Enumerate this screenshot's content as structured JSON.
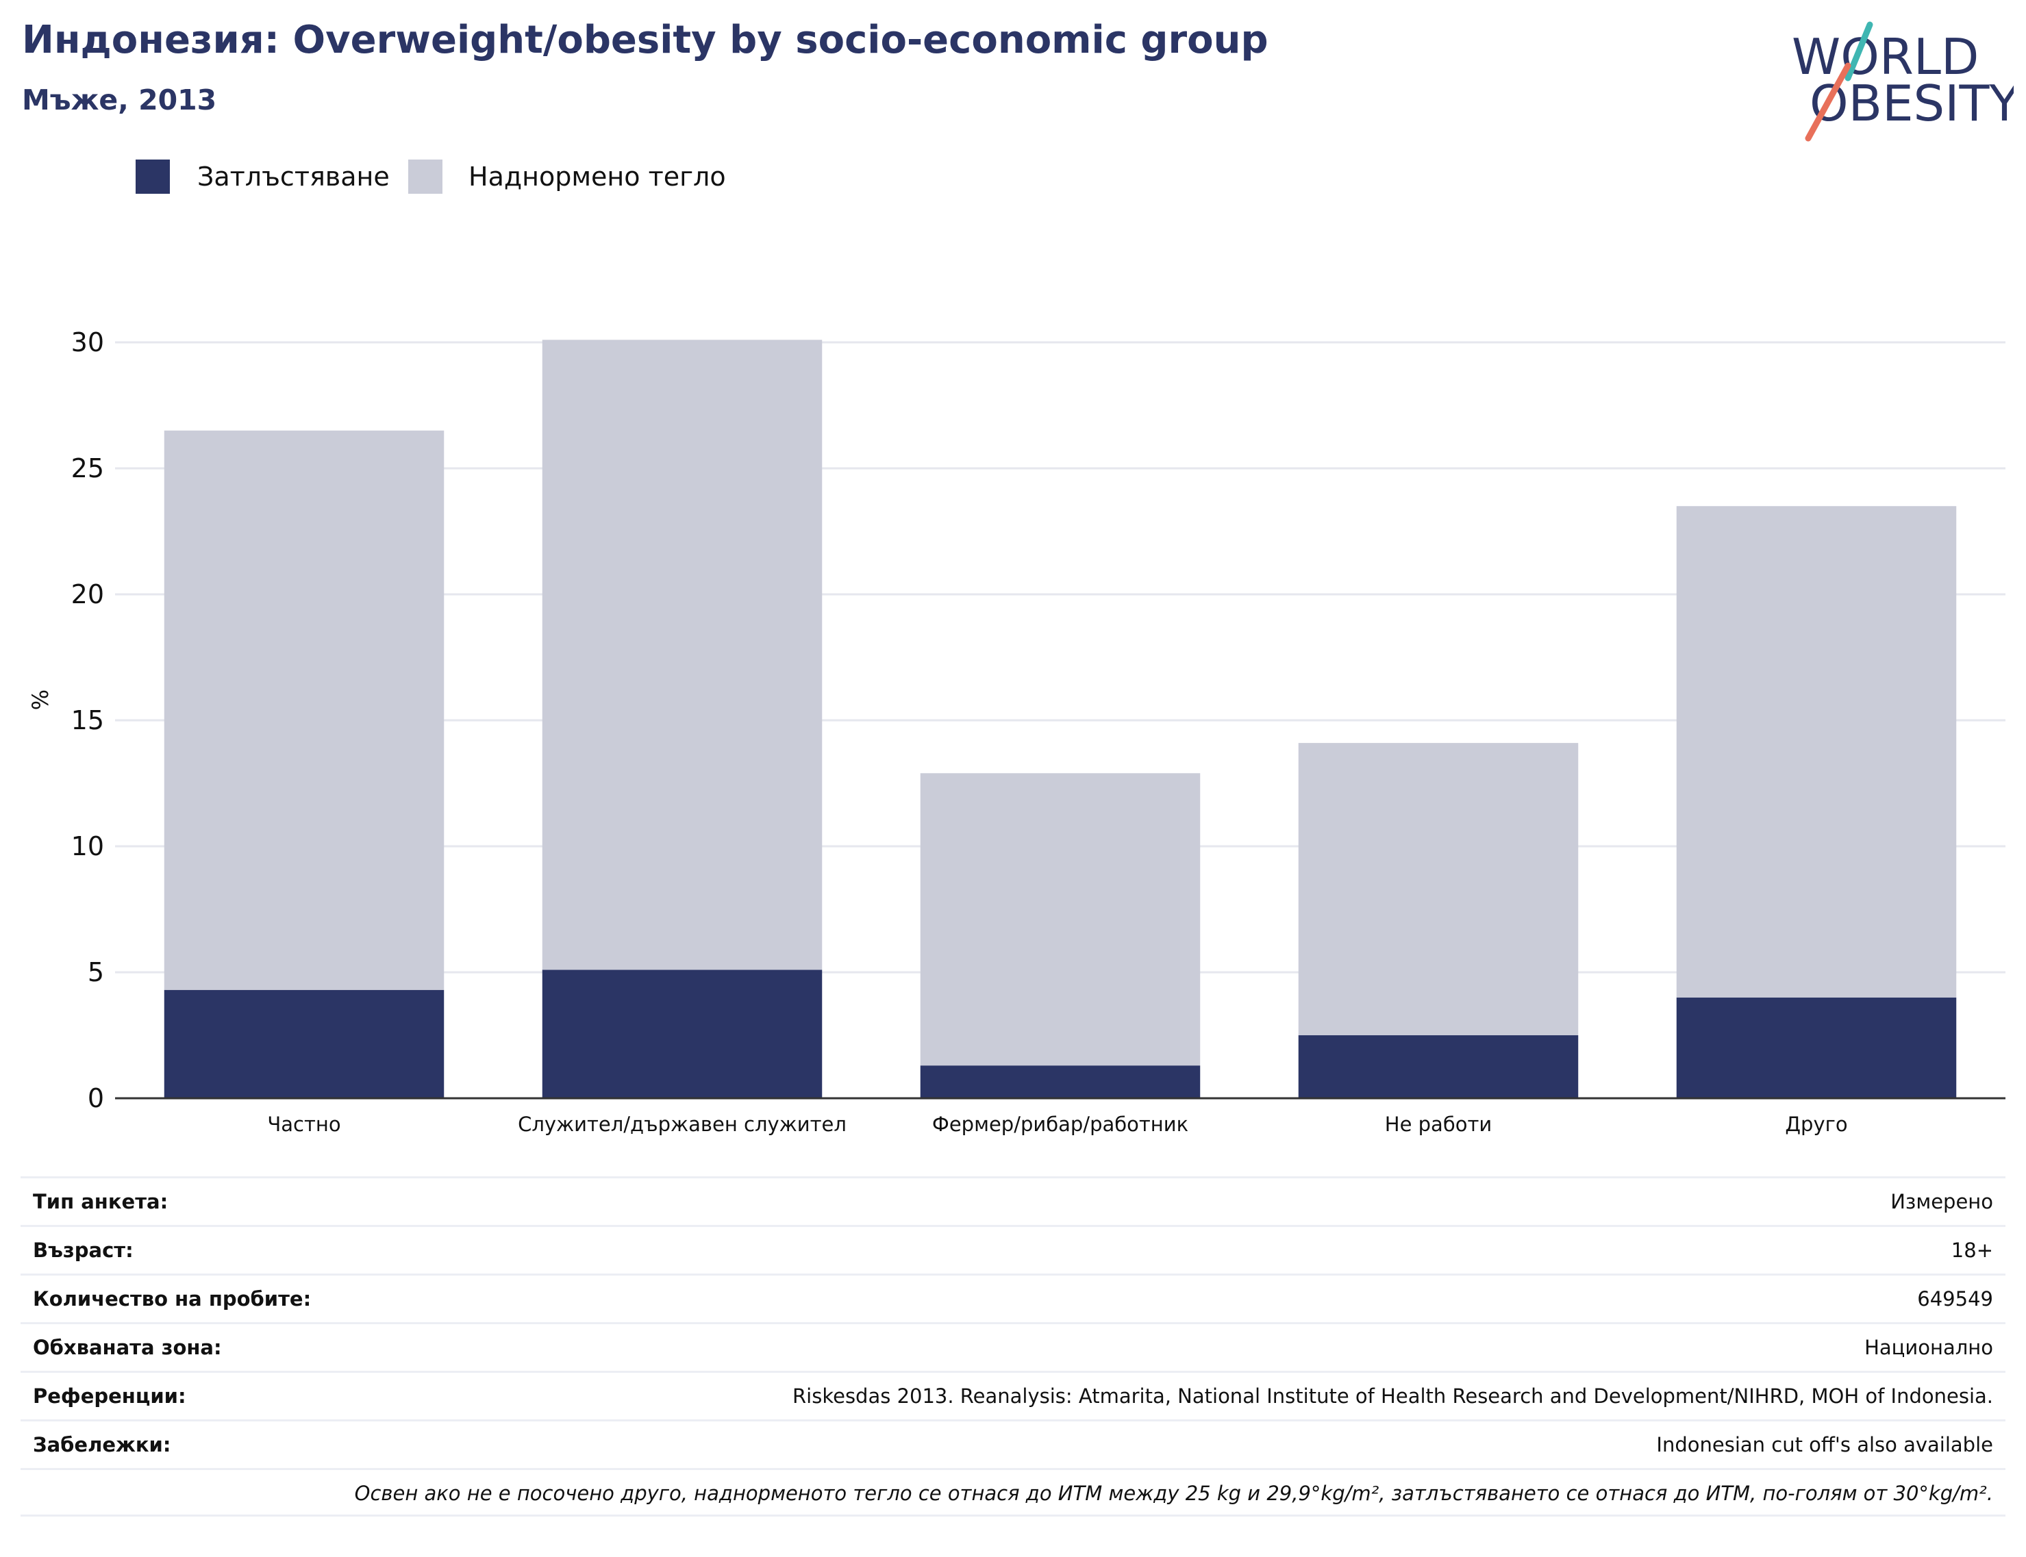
{
  "header": {
    "title": "Индонезия: Overweight/obesity by socio-economic group",
    "subtitle": "Мъже, 2013"
  },
  "logo": {
    "line1": "WORLD",
    "line2": "OBESITY"
  },
  "colors": {
    "obesity": "#2b3565",
    "overweight": "#caccd8",
    "grid": "#e6e7ee",
    "axis": "#333333",
    "logo_navy": "#2b3565",
    "logo_teal": "#3fb6b2",
    "logo_coral": "#e8705a"
  },
  "chart_data": {
    "type": "bar",
    "stacked": true,
    "categories": [
      "Частно",
      "Служител/държавен служител",
      "Фермер/рибар/работник",
      "Не работи",
      "Друго"
    ],
    "series": [
      {
        "name": "Затлъстяване",
        "values": [
          4.3,
          5.1,
          1.3,
          2.5,
          4.0
        ]
      },
      {
        "name": "Наднормено тегло",
        "values": [
          22.2,
          25.0,
          11.6,
          11.6,
          19.5
        ]
      }
    ],
    "ylabel": "%",
    "ylim": [
      0,
      30
    ],
    "yticks": [
      0,
      5,
      10,
      15,
      20,
      25,
      30
    ],
    "grid": true,
    "legend_position": "top-left"
  },
  "info": {
    "rows": [
      {
        "label": "Тип анкета:",
        "value": "Измерено"
      },
      {
        "label": "Възраст:",
        "value": "18+"
      },
      {
        "label": "Количество на пробите:",
        "value": "649549"
      },
      {
        "label": "Обхваната зона:",
        "value": "Национално"
      },
      {
        "label": "Референции:",
        "value": "Riskesdas 2013. Reanalysis: Atmarita, National Institute of Health Research and Development/NIHRD, MOH of Indonesia."
      },
      {
        "label": "Забележки:",
        "value": "Indonesian cut off's also available"
      }
    ],
    "footnote": "Освен ако не е посочено друго, наднорменото тегло се отнася до ИТМ между 25 kg и 29,9°kg/m², затлъстяването се отнася до ИТМ, по-голям от 30°kg/m²."
  }
}
